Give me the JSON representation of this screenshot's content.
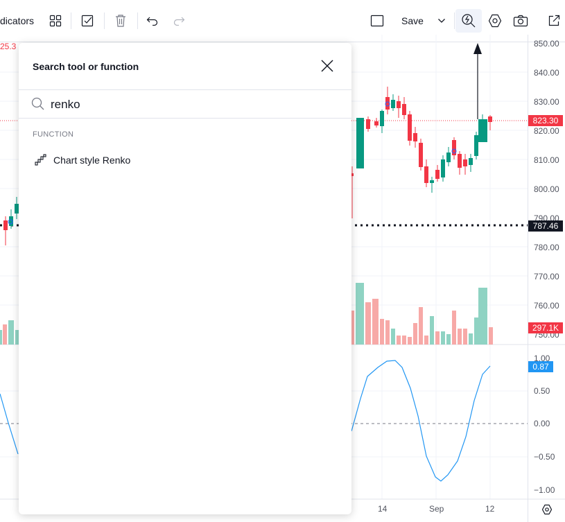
{
  "toolbar": {
    "indicators_label": "dicators",
    "save_label": "Save"
  },
  "chart": {
    "top_left_value": "25.3",
    "price_ticks": [
      "850.00",
      "840.00",
      "830.00",
      "820.00",
      "810.00",
      "800.00",
      "790.00",
      "780.00",
      "770.00",
      "760.00",
      "750.00"
    ],
    "current_price": "823.30",
    "line_price": "787.46",
    "volume_badge": "297.1K",
    "oscillator_ticks": [
      "1.00",
      "0.50",
      "0.00",
      "−0.50",
      "−1.00"
    ],
    "oscillator_badge": "0.87",
    "x_labels": [
      "14",
      "Sep",
      "12"
    ],
    "colors": {
      "up": "#089981",
      "down": "#f23645",
      "line": "#2196f3",
      "badge_dark": "#131722"
    }
  },
  "dialog": {
    "title": "Search tool or function",
    "search_value": "renko",
    "section_label": "FUNCTION",
    "result_label": "Chart style Renko"
  }
}
